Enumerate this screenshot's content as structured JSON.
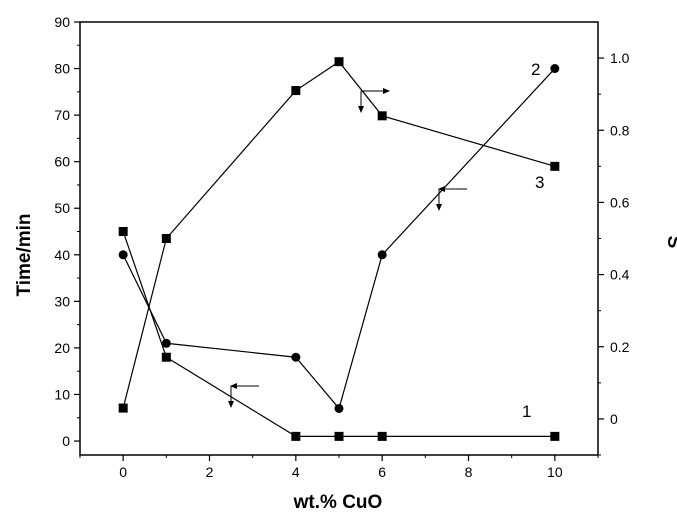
{
  "chart_data": {
    "type": "line",
    "xlabel": "wt.% CuO",
    "ylabel_left": "Time/min",
    "ylabel_right": "S",
    "xlim": [
      -1,
      11
    ],
    "xticks": [
      0,
      2,
      4,
      6,
      8,
      10
    ],
    "ylim_left": [
      -3,
      90
    ],
    "yticks_left": [
      0,
      10,
      20,
      30,
      40,
      50,
      60,
      70,
      80,
      90
    ],
    "ylim_right": [
      -0.1,
      1.1
    ],
    "yticks_right": [
      0,
      0.2,
      0.4,
      0.6,
      0.8,
      1.0
    ],
    "ytick_labels_right": [
      "0",
      "0.2",
      "0.4",
      "0.6",
      "0.8",
      "1.0"
    ],
    "grid": false,
    "series": [
      {
        "name": "1",
        "axis": "left",
        "marker": "square",
        "x": [
          0,
          1,
          4,
          5,
          6,
          10
        ],
        "y": [
          45,
          18,
          1,
          1,
          1,
          1
        ]
      },
      {
        "name": "2",
        "axis": "left",
        "marker": "circle",
        "x": [
          0,
          1,
          4,
          5,
          6,
          10
        ],
        "y": [
          40,
          21,
          18,
          7,
          40,
          80
        ]
      },
      {
        "name": "3",
        "axis": "right",
        "marker": "square",
        "x": [
          0,
          1,
          4,
          5,
          6,
          10
        ],
        "y": [
          0.03,
          0.5,
          0.91,
          0.99,
          0.84,
          0.7
        ]
      }
    ]
  }
}
